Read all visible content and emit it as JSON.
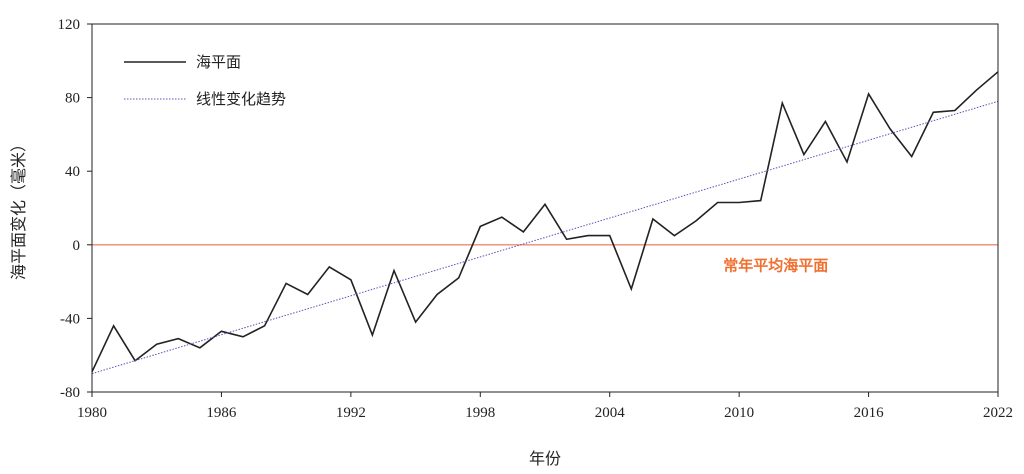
{
  "chart_data": {
    "type": "line",
    "xlabel": "年份",
    "ylabel": "海平面变化（毫米）",
    "xlim": [
      1980,
      2022
    ],
    "ylim": [
      -80,
      120
    ],
    "xticks": [
      1980,
      1986,
      1992,
      1998,
      2004,
      2010,
      2016,
      2022
    ],
    "yticks": [
      -80,
      -40,
      0,
      40,
      80,
      120
    ],
    "x_tick_labels": [
      "1980",
      "1986",
      "1992",
      "1998",
      "2004",
      "2010",
      "2016",
      "2022"
    ],
    "y_tick_labels": [
      "-80",
      "-40",
      "0",
      "40",
      "80",
      "120"
    ],
    "legend_position": "top-left",
    "grid": false,
    "series": [
      {
        "name": "海平面",
        "color": "#222222",
        "style": "solid",
        "x": [
          1980,
          1981,
          1982,
          1983,
          1984,
          1985,
          1986,
          1987,
          1988,
          1989,
          1990,
          1991,
          1992,
          1993,
          1994,
          1995,
          1996,
          1997,
          1998,
          1999,
          2000,
          2001,
          2002,
          2003,
          2004,
          2005,
          2006,
          2007,
          2008,
          2009,
          2010,
          2011,
          2012,
          2013,
          2014,
          2015,
          2016,
          2017,
          2018,
          2019,
          2020,
          2021,
          2022
        ],
        "y": [
          -69,
          -44,
          -63,
          -54,
          -51,
          -56,
          -47,
          -50,
          -44,
          -21,
          -27,
          -12,
          -19,
          -49,
          -14,
          -42,
          -27,
          -18,
          10,
          15,
          7,
          22,
          3,
          5,
          5,
          -24,
          14,
          5,
          13,
          23,
          23,
          24,
          77,
          49,
          67,
          45,
          82,
          63,
          48,
          72,
          73,
          84,
          94
        ]
      },
      {
        "name": "线性变化趋势",
        "color": "#5555bb",
        "style": "dotted",
        "x": [
          1980,
          2022
        ],
        "y": [
          -70,
          78
        ]
      }
    ],
    "reference_line": {
      "y": 0,
      "color": "#f08a70",
      "label": "常年平均海平面",
      "label_color": "#f07030"
    }
  }
}
